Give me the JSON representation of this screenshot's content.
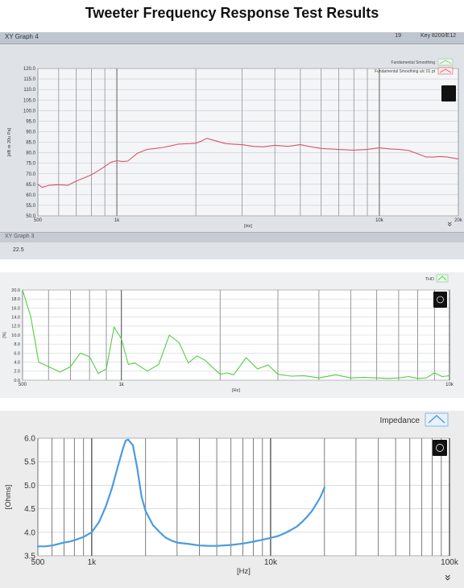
{
  "page_title": "Tweeter Frequency Response Test Results",
  "panel1": {
    "window_title": "XY Graph 4",
    "window_number": "19",
    "window_key": "Key 8200/E12",
    "subwindow_title": "XY Graph 3",
    "subwindow_tick": "22.5"
  },
  "panel3": {
    "legend_label": "Impedance"
  },
  "colors": {
    "fr": "#d9556b",
    "thd": "#55cc44",
    "impedance": "#4a9be0"
  },
  "icons": {
    "plot_palette": "graph-palette-icon",
    "scroll": "double-chevron-down-icon"
  },
  "chart_data": [
    {
      "type": "line",
      "xscale": "log",
      "xlim": [
        500,
        20000
      ],
      "ylim": [
        50,
        120
      ],
      "xlabel": "[Hz]",
      "ylabel": "[dB re 20u Pa]",
      "xticks": [
        {
          "v": 500,
          "label": "500"
        },
        {
          "v": 1000,
          "label": "1k"
        },
        {
          "v": 10000,
          "label": "10k"
        },
        {
          "v": 20000,
          "label": "20k"
        }
      ],
      "yticks": [
        50,
        55,
        60,
        65,
        70,
        75,
        80,
        85,
        90,
        95,
        100,
        105,
        110,
        115,
        120
      ],
      "ytick_labels": [
        "50.0",
        "55.0",
        "60.0",
        "65.0",
        "70.0",
        "75.0",
        "80.0",
        "85.0",
        "90.0",
        "95.0",
        "100.0",
        "105.0",
        "110.0",
        "115.0",
        "120.0"
      ],
      "legend": [
        "Fundamental Smoothing",
        "Fundamental Smoothing u/c 01 pt"
      ],
      "series": [
        {
          "name": "Fundamental Smoothing u/c 01 pt",
          "x": [
            500,
            520,
            550,
            600,
            650,
            700,
            750,
            800,
            850,
            900,
            950,
            1000,
            1050,
            1100,
            1200,
            1300,
            1400,
            1500,
            1600,
            1700,
            1800,
            1900,
            2000,
            2100,
            2200,
            2400,
            2600,
            2800,
            3000,
            3300,
            3600,
            4000,
            4500,
            5000,
            5500,
            6000,
            6500,
            7000,
            8000,
            9000,
            10000,
            11000,
            12000,
            13000,
            14000,
            15000,
            16000,
            17000,
            18000,
            19000,
            20000
          ],
          "y": [
            65,
            63.5,
            64.5,
            64.8,
            64.5,
            66.5,
            68,
            69.5,
            71.5,
            73.5,
            75.5,
            76.2,
            75.8,
            76,
            79.8,
            81.5,
            82,
            82.5,
            83.2,
            84,
            84.2,
            84.3,
            84.5,
            85.5,
            86.8,
            85.5,
            84.3,
            84,
            83.8,
            83,
            82.8,
            83.5,
            83,
            83.8,
            82.8,
            82,
            81.8,
            81.5,
            81.2,
            81.6,
            82.3,
            81.8,
            81.5,
            81,
            79.5,
            78,
            77.9,
            78.2,
            78,
            77.5,
            77
          ]
        }
      ]
    },
    {
      "type": "line",
      "xscale": "log",
      "xlim": [
        500,
        10000
      ],
      "ylim": [
        0,
        20
      ],
      "xlabel": "[Hz]",
      "ylabel": "[%]",
      "xticks": [
        {
          "v": 500,
          "label": "500"
        },
        {
          "v": 1000,
          "label": "1k"
        },
        {
          "v": 10000,
          "label": "10k"
        }
      ],
      "yticks": [
        0,
        2,
        4,
        6,
        8,
        10,
        12,
        14,
        16,
        18,
        20
      ],
      "ytick_labels": [
        "0.0",
        "2.0",
        "4.0",
        "6.0",
        "8.0",
        "10.0",
        "12.0",
        "14.0",
        "16.0",
        "18.0",
        "20.0"
      ],
      "legend": [
        "THD"
      ],
      "series": [
        {
          "name": "THD",
          "x": [
            500,
            530,
            560,
            600,
            650,
            700,
            750,
            800,
            850,
            900,
            950,
            1000,
            1050,
            1100,
            1200,
            1300,
            1400,
            1500,
            1600,
            1700,
            1800,
            1900,
            2000,
            2100,
            2200,
            2400,
            2600,
            2800,
            3000,
            3300,
            3600,
            4000,
            4500,
            5000,
            5500,
            6000,
            6500,
            7000,
            7500,
            8000,
            8500,
            9000,
            9500,
            10000
          ],
          "y": [
            20,
            14,
            4,
            3,
            1.8,
            3,
            6,
            5.2,
            1.5,
            2.5,
            11.8,
            9.2,
            3.5,
            3.8,
            2,
            3.5,
            10,
            8.3,
            3.8,
            5.4,
            4.4,
            2.8,
            1.3,
            1.6,
            1.2,
            5,
            2.5,
            3.4,
            1.3,
            0.9,
            1,
            0.5,
            1.2,
            0.5,
            0.6,
            0.5,
            0.4,
            0.5,
            0.8,
            0.4,
            0.5,
            1.6,
            0.8,
            1
          ]
        }
      ]
    },
    {
      "type": "line",
      "xscale": "log",
      "xlim": [
        500,
        100000
      ],
      "ylim": [
        3.5,
        6.0
      ],
      "xlabel": "[Hz]",
      "ylabel": "[Ohms]",
      "xticks": [
        {
          "v": 500,
          "label": "500"
        },
        {
          "v": 1000,
          "label": "1k"
        },
        {
          "v": 10000,
          "label": "10k"
        },
        {
          "v": 100000,
          "label": "100k"
        }
      ],
      "yticks": [
        3.5,
        4.0,
        4.5,
        5.0,
        5.5,
        6.0
      ],
      "ytick_labels": [
        "3.5",
        "4.0",
        "4.5",
        "5.0",
        "5.5",
        "6.0"
      ],
      "legend": [
        "Impedance"
      ],
      "series": [
        {
          "name": "Impedance",
          "x": [
            500,
            550,
            600,
            650,
            700,
            750,
            800,
            900,
            1000,
            1100,
            1200,
            1300,
            1400,
            1500,
            1550,
            1600,
            1700,
            1800,
            1900,
            2000,
            2200,
            2400,
            2600,
            2800,
            3000,
            3500,
            4000,
            4500,
            5000,
            6000,
            7000,
            8000,
            9000,
            10000,
            11000,
            12000,
            13000,
            14000,
            15000,
            16000,
            17000,
            18000,
            19000,
            20000
          ],
          "y": [
            3.7,
            3.7,
            3.72,
            3.75,
            3.78,
            3.8,
            3.83,
            3.9,
            4.0,
            4.22,
            4.55,
            4.95,
            5.4,
            5.8,
            5.95,
            5.97,
            5.85,
            5.35,
            4.75,
            4.45,
            4.15,
            4.0,
            3.88,
            3.82,
            3.78,
            3.75,
            3.72,
            3.71,
            3.71,
            3.73,
            3.76,
            3.8,
            3.84,
            3.88,
            3.92,
            3.98,
            4.05,
            4.12,
            4.22,
            4.33,
            4.45,
            4.6,
            4.75,
            4.95
          ]
        }
      ]
    }
  ]
}
